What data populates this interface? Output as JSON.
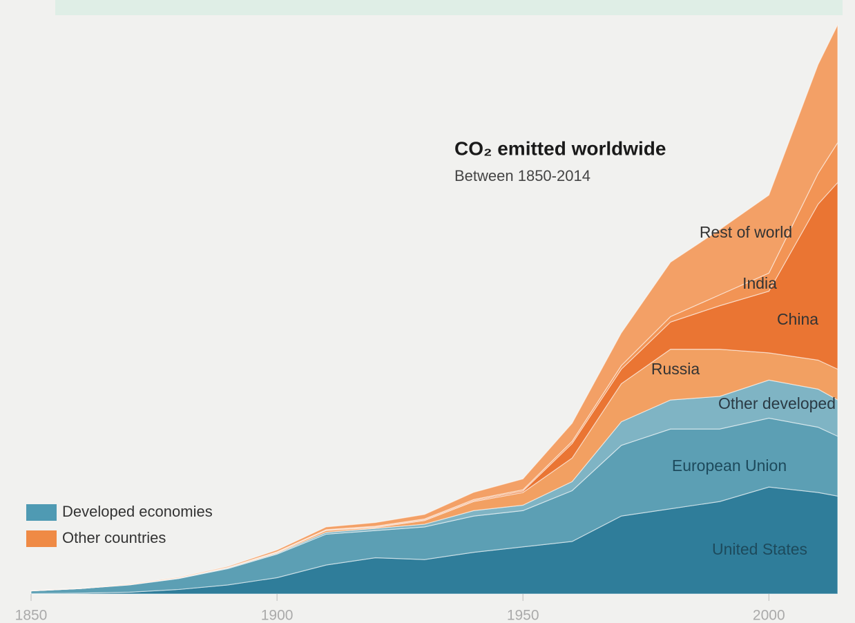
{
  "chart_data": {
    "type": "stacked-area",
    "title": "CO₂ emitted worldwide",
    "subtitle": "Between 1850-2014",
    "x": [
      1850,
      1860,
      1870,
      1880,
      1890,
      1900,
      1910,
      1920,
      1930,
      1940,
      1950,
      1960,
      1970,
      1980,
      1990,
      2000,
      2010,
      2014
    ],
    "series": [
      {
        "name": "United States",
        "color": "#2f7d9a",
        "values": [
          0.02,
          0.05,
          0.1,
          0.25,
          0.5,
          0.9,
          1.6,
          2.0,
          1.9,
          2.3,
          2.6,
          2.9,
          4.3,
          4.7,
          5.1,
          5.9,
          5.6,
          5.4
        ]
      },
      {
        "name": "European Union",
        "color": "#5c9fb4",
        "values": [
          0.15,
          0.25,
          0.4,
          0.6,
          0.9,
          1.3,
          1.7,
          1.5,
          1.8,
          2.0,
          2.0,
          2.8,
          3.9,
          4.4,
          4.0,
          3.8,
          3.6,
          3.3
        ]
      },
      {
        "name": "Other developed",
        "color": "#7fb4c4",
        "values": [
          0,
          0,
          0.01,
          0.02,
          0.03,
          0.05,
          0.1,
          0.12,
          0.15,
          0.3,
          0.3,
          0.5,
          1.3,
          1.6,
          1.8,
          2.1,
          2.1,
          2.0
        ]
      },
      {
        "name": "Russia",
        "color": "#f2a062",
        "values": [
          0,
          0,
          0.01,
          0.02,
          0.03,
          0.05,
          0.1,
          0.05,
          0.2,
          0.5,
          0.7,
          1.3,
          2.1,
          2.8,
          2.6,
          1.5,
          1.6,
          1.7
        ]
      },
      {
        "name": "China",
        "color": "#ea7533",
        "values": [
          0,
          0,
          0,
          0,
          0,
          0.01,
          0.02,
          0.03,
          0.04,
          0.05,
          0.08,
          0.8,
          0.8,
          1.5,
          2.4,
          3.4,
          8.6,
          10.3
        ]
      },
      {
        "name": "India",
        "color": "#f29455",
        "values": [
          0,
          0,
          0,
          0,
          0.01,
          0.02,
          0.03,
          0.04,
          0.05,
          0.06,
          0.07,
          0.12,
          0.2,
          0.3,
          0.6,
          1.0,
          1.7,
          2.2
        ]
      },
      {
        "name": "Rest of world",
        "color": "#f3a066",
        "values": [
          0.01,
          0.01,
          0.02,
          0.03,
          0.05,
          0.1,
          0.15,
          0.2,
          0.25,
          0.4,
          0.6,
          1.0,
          1.8,
          3.0,
          3.6,
          4.3,
          6.0,
          6.5
        ]
      }
    ],
    "legend": [
      {
        "label": "Developed economies",
        "color": "#4f9ab3"
      },
      {
        "label": "Other countries",
        "color": "#ef8a45"
      }
    ],
    "xlim": [
      1850,
      2014
    ],
    "xticks": [
      1850,
      1900,
      1950,
      2000
    ],
    "ylim": [
      0,
      32
    ]
  }
}
